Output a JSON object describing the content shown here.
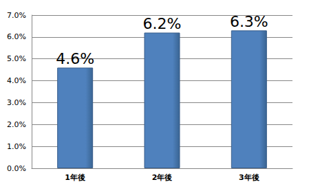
{
  "chart_data": {
    "type": "bar",
    "categories": [
      "1年後",
      "2年後",
      "3年後"
    ],
    "values": [
      4.6,
      6.2,
      6.3
    ],
    "value_labels": [
      "4.6%",
      "6.2%",
      "6.3%"
    ],
    "color": "#4f81bd",
    "ylim": [
      0,
      7
    ],
    "yticks": [
      {
        "value": 0,
        "label": "0.0%"
      },
      {
        "value": 1,
        "label": "1.0%"
      },
      {
        "value": 2,
        "label": "2.0%"
      },
      {
        "value": 3,
        "label": "3.0%"
      },
      {
        "value": 4,
        "label": "4.0%"
      },
      {
        "value": 5,
        "label": "5.0%"
      },
      {
        "value": 6,
        "label": "6.0%"
      },
      {
        "value": 7,
        "label": "7.0%"
      }
    ],
    "grid": true,
    "data_labels": true
  }
}
